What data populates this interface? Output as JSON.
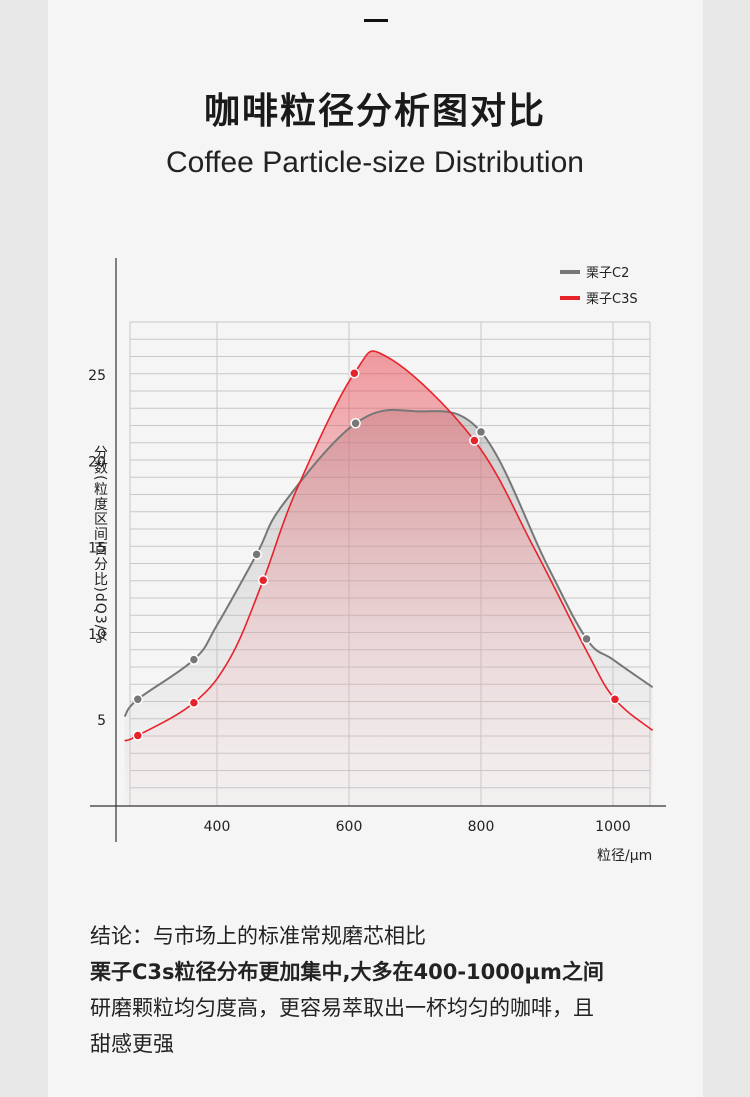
{
  "page": {
    "title_cn": "咖啡粒径分析图对比",
    "title_en": "Coffee Particle-size Distribution"
  },
  "conclusion": {
    "line1": "结论：与市场上的标准常规磨芯相比",
    "line2": "栗子C3s粒径分布更加集中,大多在400-1000μm之间",
    "line3": "研磨颗粒均匀度高，更容易萃取出一杯均匀的咖啡，且",
    "line4": "甜感更强"
  },
  "colors": {
    "c2": "#777777",
    "c3s": "#e8222b",
    "grid": "#c8c8c8",
    "axis": "#333333"
  },
  "chart_data": {
    "type": "area",
    "xlabel": "粒径/μm",
    "ylabel": "分数(粒度区间百分比)dQ3/%",
    "x_ticks": [
      400,
      600,
      800,
      1000
    ],
    "x_tick_labels": [
      "400",
      "600",
      "800",
      "1000"
    ],
    "y_ticks": [
      5,
      10,
      15,
      20,
      25
    ],
    "y_tick_labels": [
      "5",
      "10",
      "15",
      "20",
      "25"
    ],
    "xlim": [
      248,
      1060
    ],
    "ylim": [
      0,
      28
    ],
    "legend_position": "top-right",
    "series": [
      {
        "name": "栗子C2",
        "curve": [
          [
            260,
            5.2
          ],
          [
            280,
            6.2
          ],
          [
            365,
            8.5
          ],
          [
            400,
            10.5
          ],
          [
            460,
            14.6
          ],
          [
            500,
            17.5
          ],
          [
            610,
            22.2
          ],
          [
            700,
            22.9
          ],
          [
            800,
            21.7
          ],
          [
            900,
            14.0
          ],
          [
            960,
            9.7
          ],
          [
            1000,
            8.5
          ],
          [
            1060,
            6.9
          ]
        ],
        "markers": [
          [
            280,
            6.2
          ],
          [
            365,
            8.5
          ],
          [
            460,
            14.6
          ],
          [
            610,
            22.2
          ],
          [
            800,
            21.7
          ],
          [
            960,
            9.7
          ]
        ]
      },
      {
        "name": "栗子C3S",
        "curve": [
          [
            260,
            3.8
          ],
          [
            280,
            4.1
          ],
          [
            365,
            6.0
          ],
          [
            420,
            8.6
          ],
          [
            470,
            13.1
          ],
          [
            520,
            18.3
          ],
          [
            608,
            25.1
          ],
          [
            660,
            26.0
          ],
          [
            790,
            21.2
          ],
          [
            880,
            15.0
          ],
          [
            960,
            9.0
          ],
          [
            1003,
            6.2
          ],
          [
            1060,
            4.4
          ]
        ],
        "markers": [
          [
            280,
            4.1
          ],
          [
            365,
            6.0
          ],
          [
            470,
            13.1
          ],
          [
            608,
            25.1
          ],
          [
            790,
            21.2
          ],
          [
            1003,
            6.2
          ]
        ]
      }
    ]
  }
}
